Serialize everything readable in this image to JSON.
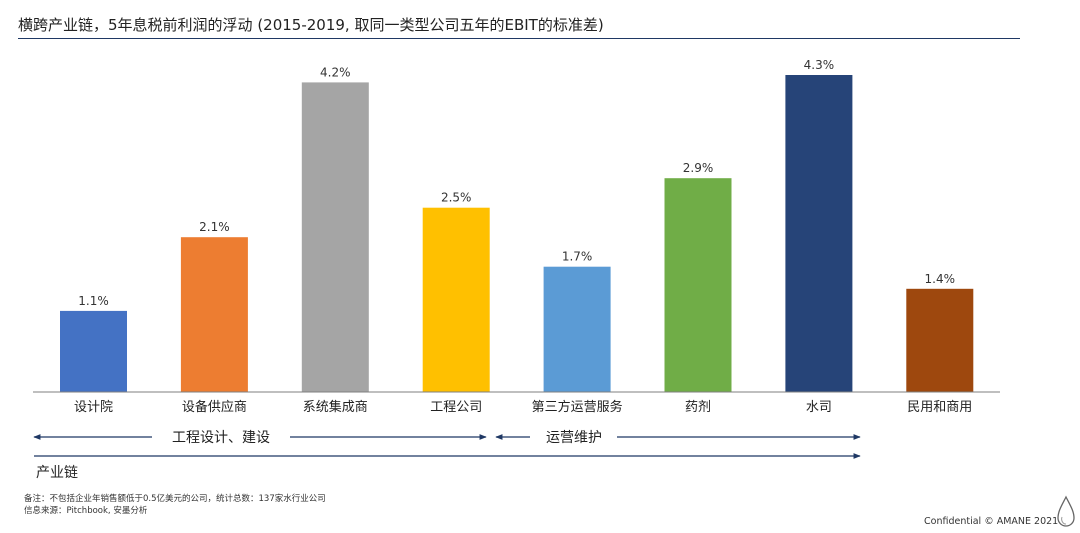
{
  "title": "横跨产业链，5年息税前利润的浮动 (2015-2019, 取同一类型公司五年的EBIT的标准差)",
  "chart_data": {
    "type": "bar",
    "title": "横跨产业链，5年息税前利润的浮动 (2015-2019, 取同一类型公司五年的EBIT的标准差)",
    "categories": [
      "设计院",
      "设备供应商",
      "系统集成商",
      "工程公司",
      "第三方运营服务",
      "药剂",
      "水司",
      "民用和商用"
    ],
    "values": [
      1.1,
      2.1,
      4.2,
      2.5,
      1.7,
      2.9,
      4.3,
      1.4
    ],
    "value_labels": [
      "1.1%",
      "2.1%",
      "4.2%",
      "2.5%",
      "1.7%",
      "2.9%",
      "4.3%",
      "1.4%"
    ],
    "colors": [
      "#4472c4",
      "#ed7d31",
      "#a5a5a5",
      "#ffc000",
      "#5b9bd5",
      "#70ad47",
      "#264478",
      "#9e480e"
    ],
    "ylim": [
      0,
      4.3
    ],
    "grid": false,
    "xlabel": "",
    "ylabel": ""
  },
  "groups": [
    {
      "label": "工程设计、建设"
    },
    {
      "label": "运营维护"
    }
  ],
  "chain_label": "产业链",
  "footnotes": {
    "note": "备注：不包括企业年销售额低于0.5亿美元的公司，统计总数：137家水行业公司",
    "source": "信息来源：Pitchbook, 安墨分析"
  },
  "confidential": "Confidential © AMANE 2021",
  "logo_icon": "water-drop-icon",
  "arrow_color": "#1f3864"
}
